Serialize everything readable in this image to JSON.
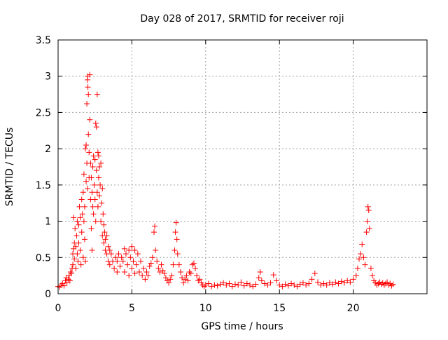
{
  "chart_data": {
    "type": "scatter",
    "title": "Day 028 of 2017, SRMTID for receiver roji",
    "xlabel": "GPS time / hours",
    "ylabel": "SRMTID / TECUs",
    "xlim": [
      0,
      25
    ],
    "ylim": [
      0,
      3.5
    ],
    "xticks": [
      0,
      5,
      10,
      15,
      20
    ],
    "xtick_labels": [
      "0",
      "5",
      "10",
      "15",
      "20"
    ],
    "yticks": [
      0,
      0.5,
      1,
      1.5,
      2,
      2.5,
      3,
      3.5
    ],
    "ytick_labels": [
      "0",
      "0.5",
      "1",
      "1.5",
      "2",
      "2.5",
      "3",
      "3.5"
    ],
    "grid": true,
    "marker": "+",
    "series": [
      {
        "name": "SRMTID",
        "color": "#ff0000",
        "points": [
          [
            0.0,
            0.1
          ],
          [
            0.1,
            0.09
          ],
          [
            0.2,
            0.12
          ],
          [
            0.3,
            0.14
          ],
          [
            0.4,
            0.11
          ],
          [
            0.5,
            0.18
          ],
          [
            0.55,
            0.22
          ],
          [
            0.6,
            0.15
          ],
          [
            0.7,
            0.2
          ],
          [
            0.75,
            0.25
          ],
          [
            0.8,
            0.18
          ],
          [
            0.85,
            0.3
          ],
          [
            0.9,
            0.28
          ],
          [
            0.95,
            0.35
          ],
          [
            1.0,
            0.4
          ],
          [
            1.0,
            0.55
          ],
          [
            1.05,
            0.62
          ],
          [
            1.05,
            1.05
          ],
          [
            1.1,
            0.48
          ],
          [
            1.1,
            0.7
          ],
          [
            1.15,
            0.9
          ],
          [
            1.2,
            0.65
          ],
          [
            1.2,
            0.35
          ],
          [
            1.25,
            0.8
          ],
          [
            1.3,
            0.55
          ],
          [
            1.3,
            1.0
          ],
          [
            1.35,
            0.45
          ],
          [
            1.4,
            0.95
          ],
          [
            1.4,
            0.7
          ],
          [
            1.45,
            1.2
          ],
          [
            1.5,
            0.6
          ],
          [
            1.5,
            1.05
          ],
          [
            1.55,
            0.4
          ],
          [
            1.6,
            1.3
          ],
          [
            1.6,
            0.85
          ],
          [
            1.65,
            1.1
          ],
          [
            1.7,
            0.5
          ],
          [
            1.7,
            1.4
          ],
          [
            1.75,
            1.0
          ],
          [
            1.75,
            1.65
          ],
          [
            1.8,
            0.75
          ],
          [
            1.8,
            1.2
          ],
          [
            1.85,
            2.0
          ],
          [
            1.85,
            0.45
          ],
          [
            1.9,
            1.55
          ],
          [
            1.9,
            2.05
          ],
          [
            1.95,
            1.8
          ],
          [
            1.95,
            2.62
          ],
          [
            2.0,
            1.45
          ],
          [
            2.0,
            3.0
          ],
          [
            2.0,
            2.95
          ],
          [
            2.02,
            2.85
          ],
          [
            2.05,
            2.75
          ],
          [
            2.05,
            2.2
          ],
          [
            2.1,
            1.95
          ],
          [
            2.1,
            1.6
          ],
          [
            2.15,
            3.02
          ],
          [
            2.15,
            2.4
          ],
          [
            2.2,
            1.8
          ],
          [
            2.2,
            1.3
          ],
          [
            2.25,
            1.6
          ],
          [
            2.25,
            0.9
          ],
          [
            2.3,
            1.4
          ],
          [
            2.3,
            0.6
          ],
          [
            2.35,
            1.2
          ],
          [
            2.35,
            1.75
          ],
          [
            2.4,
            1.9
          ],
          [
            2.4,
            1.1
          ],
          [
            2.45,
            1.5
          ],
          [
            2.5,
            1.3
          ],
          [
            2.5,
            1.85
          ],
          [
            2.55,
            2.35
          ],
          [
            2.55,
            1.0
          ],
          [
            2.6,
            2.3
          ],
          [
            2.6,
            1.7
          ],
          [
            2.65,
            2.75
          ],
          [
            2.65,
            1.4
          ],
          [
            2.7,
            1.95
          ],
          [
            2.7,
            1.2
          ],
          [
            2.75,
            1.6
          ],
          [
            2.75,
            1.9
          ],
          [
            2.8,
            1.75
          ],
          [
            2.8,
            1.35
          ],
          [
            2.85,
            1.5
          ],
          [
            2.9,
            1.8
          ],
          [
            2.9,
            1.0
          ],
          [
            2.95,
            1.25
          ],
          [
            3.0,
            1.45
          ],
          [
            3.0,
            0.8
          ],
          [
            3.05,
            1.1
          ],
          [
            3.1,
            0.95
          ],
          [
            3.1,
            0.7
          ],
          [
            3.15,
            0.85
          ],
          [
            3.2,
            0.75
          ],
          [
            3.2,
            0.6
          ],
          [
            3.3,
            0.8
          ],
          [
            3.3,
            0.55
          ],
          [
            3.4,
            0.65
          ],
          [
            3.4,
            0.45
          ],
          [
            3.5,
            0.6
          ],
          [
            3.5,
            0.4
          ],
          [
            3.6,
            0.55
          ],
          [
            3.7,
            0.45
          ],
          [
            3.8,
            0.35
          ],
          [
            3.9,
            0.5
          ],
          [
            4.0,
            0.45
          ],
          [
            4.0,
            0.3
          ],
          [
            4.1,
            0.55
          ],
          [
            4.2,
            0.38
          ],
          [
            4.3,
            0.5
          ],
          [
            4.4,
            0.45
          ],
          [
            4.5,
            0.62
          ],
          [
            4.5,
            0.3
          ],
          [
            4.6,
            0.55
          ],
          [
            4.7,
            0.4
          ],
          [
            4.8,
            0.6
          ],
          [
            4.8,
            0.25
          ],
          [
            4.9,
            0.5
          ],
          [
            5.0,
            0.65
          ],
          [
            5.0,
            0.35
          ],
          [
            5.1,
            0.45
          ],
          [
            5.2,
            0.6
          ],
          [
            5.2,
            0.28
          ],
          [
            5.3,
            0.4
          ],
          [
            5.4,
            0.55
          ],
          [
            5.5,
            0.3
          ],
          [
            5.6,
            0.45
          ],
          [
            5.7,
            0.25
          ],
          [
            5.8,
            0.35
          ],
          [
            5.9,
            0.2
          ],
          [
            6.0,
            0.3
          ],
          [
            6.1,
            0.25
          ],
          [
            6.2,
            0.38
          ],
          [
            6.3,
            0.42
          ],
          [
            6.4,
            0.5
          ],
          [
            6.5,
            0.85
          ],
          [
            6.55,
            0.93
          ],
          [
            6.6,
            0.6
          ],
          [
            6.7,
            0.45
          ],
          [
            6.8,
            0.35
          ],
          [
            6.9,
            0.3
          ],
          [
            7.0,
            0.4
          ],
          [
            7.1,
            0.32
          ],
          [
            7.2,
            0.28
          ],
          [
            7.3,
            0.22
          ],
          [
            7.4,
            0.18
          ],
          [
            7.5,
            0.15
          ],
          [
            7.6,
            0.2
          ],
          [
            7.7,
            0.25
          ],
          [
            7.8,
            0.4
          ],
          [
            7.9,
            0.6
          ],
          [
            7.95,
            0.85
          ],
          [
            8.0,
            0.98
          ],
          [
            8.05,
            0.75
          ],
          [
            8.1,
            0.55
          ],
          [
            8.2,
            0.4
          ],
          [
            8.3,
            0.3
          ],
          [
            8.4,
            0.22
          ],
          [
            8.5,
            0.15
          ],
          [
            8.6,
            0.2
          ],
          [
            8.7,
            0.25
          ],
          [
            8.8,
            0.18
          ],
          [
            8.9,
            0.3
          ],
          [
            9.0,
            0.28
          ],
          [
            9.1,
            0.4
          ],
          [
            9.2,
            0.42
          ],
          [
            9.3,
            0.35
          ],
          [
            9.4,
            0.25
          ],
          [
            9.5,
            0.18
          ],
          [
            9.6,
            0.2
          ],
          [
            9.7,
            0.15
          ],
          [
            9.8,
            0.12
          ],
          [
            9.9,
            0.1
          ],
          [
            10.0,
            0.12
          ],
          [
            10.2,
            0.14
          ],
          [
            10.4,
            0.1
          ],
          [
            10.6,
            0.12
          ],
          [
            10.8,
            0.11
          ],
          [
            11.0,
            0.13
          ],
          [
            11.2,
            0.15
          ],
          [
            11.4,
            0.12
          ],
          [
            11.6,
            0.14
          ],
          [
            11.8,
            0.1
          ],
          [
            12.0,
            0.13
          ],
          [
            12.2,
            0.12
          ],
          [
            12.4,
            0.16
          ],
          [
            12.6,
            0.11
          ],
          [
            12.8,
            0.14
          ],
          [
            13.0,
            0.12
          ],
          [
            13.2,
            0.1
          ],
          [
            13.4,
            0.13
          ],
          [
            13.6,
            0.22
          ],
          [
            13.7,
            0.3
          ],
          [
            13.8,
            0.18
          ],
          [
            14.0,
            0.14
          ],
          [
            14.2,
            0.12
          ],
          [
            14.4,
            0.15
          ],
          [
            14.6,
            0.26
          ],
          [
            14.8,
            0.18
          ],
          [
            15.0,
            0.12
          ],
          [
            15.2,
            0.1
          ],
          [
            15.4,
            0.13
          ],
          [
            15.6,
            0.11
          ],
          [
            15.8,
            0.14
          ],
          [
            16.0,
            0.12
          ],
          [
            16.2,
            0.1
          ],
          [
            16.4,
            0.13
          ],
          [
            16.6,
            0.15
          ],
          [
            16.8,
            0.12
          ],
          [
            17.0,
            0.14
          ],
          [
            17.2,
            0.2
          ],
          [
            17.4,
            0.28
          ],
          [
            17.6,
            0.16
          ],
          [
            17.8,
            0.12
          ],
          [
            18.0,
            0.14
          ],
          [
            18.2,
            0.12
          ],
          [
            18.4,
            0.15
          ],
          [
            18.6,
            0.13
          ],
          [
            18.8,
            0.16
          ],
          [
            19.0,
            0.14
          ],
          [
            19.2,
            0.17
          ],
          [
            19.4,
            0.15
          ],
          [
            19.6,
            0.18
          ],
          [
            19.8,
            0.16
          ],
          [
            20.0,
            0.2
          ],
          [
            20.2,
            0.25
          ],
          [
            20.3,
            0.35
          ],
          [
            20.4,
            0.48
          ],
          [
            20.5,
            0.55
          ],
          [
            20.6,
            0.68
          ],
          [
            20.7,
            0.5
          ],
          [
            20.8,
            0.4
          ],
          [
            20.9,
            0.85
          ],
          [
            20.95,
            1.0
          ],
          [
            21.0,
            1.2
          ],
          [
            21.05,
            1.15
          ],
          [
            21.1,
            0.9
          ],
          [
            21.2,
            0.35
          ],
          [
            21.3,
            0.25
          ],
          [
            21.4,
            0.18
          ],
          [
            21.5,
            0.15
          ],
          [
            21.6,
            0.12
          ],
          [
            21.7,
            0.14
          ],
          [
            21.8,
            0.16
          ],
          [
            21.9,
            0.13
          ],
          [
            22.0,
            0.15
          ],
          [
            22.1,
            0.12
          ],
          [
            22.2,
            0.14
          ],
          [
            22.3,
            0.16
          ],
          [
            22.4,
            0.12
          ],
          [
            22.5,
            0.14
          ],
          [
            22.6,
            0.11
          ],
          [
            22.7,
            0.13
          ]
        ]
      }
    ]
  }
}
